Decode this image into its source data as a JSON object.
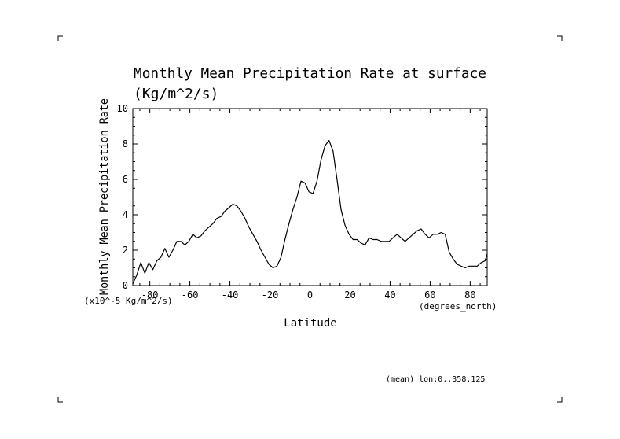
{
  "chart_data": {
    "type": "line",
    "title_line1": "Monthly Mean Precipitation Rate at surface",
    "title_line2": "(Kg/m^2/s)",
    "ylabel": "Monthly Mean Precipitation Rate",
    "xlabel": "Latitude",
    "x_units": "(degrees_north)",
    "y_units": "(x10^-5 Kg/m^2/s)",
    "footer": "(mean) lon:0..358.125",
    "xlim": [
      -88.5,
      88.5
    ],
    "ylim": [
      0,
      10
    ],
    "xticks": [
      -80,
      -60,
      -40,
      -20,
      0,
      20,
      40,
      60,
      80
    ],
    "xtick_labels": [
      "-80",
      "-60",
      "-40",
      "-20",
      "0",
      "20",
      "40",
      "60",
      "80"
    ],
    "yticks": [
      0,
      2,
      4,
      6,
      8,
      10
    ],
    "ytick_labels": [
      "0",
      "2",
      "4",
      "6",
      "8",
      "10"
    ],
    "grid": false,
    "series": [
      {
        "x": [
          -88.5,
          -86.5,
          -84.5,
          -82.5,
          -80.5,
          -78.5,
          -76.5,
          -74.5,
          -72.5,
          -70.5,
          -68.5,
          -66.5,
          -64.5,
          -62.5,
          -60.5,
          -58.5,
          -56.5,
          -54.5,
          -52.5,
          -50.5,
          -48.5,
          -46.5,
          -44.5,
          -42.5,
          -40.5,
          -38.5,
          -36.5,
          -34.5,
          -32.5,
          -30.5,
          -28.5,
          -26.5,
          -24.5,
          -22.5,
          -20.5,
          -18.5,
          -16.5,
          -14.5,
          -12.5,
          -10.5,
          -8.5,
          -6.5,
          -4.5,
          -2.5,
          -0.5,
          1.5,
          3.5,
          5.5,
          7.5,
          9.5,
          11.5,
          13.5,
          15.5,
          17.5,
          19.5,
          21.5,
          23.5,
          25.5,
          27.5,
          29.5,
          31.5,
          33.5,
          35.5,
          37.5,
          39.5,
          41.5,
          43.5,
          45.5,
          47.5,
          49.5,
          51.5,
          53.5,
          55.5,
          57.5,
          59.5,
          61.5,
          63.5,
          65.5,
          67.5,
          69.5,
          71.5,
          73.5,
          75.5,
          77.5,
          79.5,
          81.5,
          83.5,
          85.5,
          87.5,
          88.5
        ],
        "y": [
          0.1,
          0.6,
          1.3,
          0.7,
          1.3,
          0.9,
          1.4,
          1.6,
          2.1,
          1.6,
          2.0,
          2.5,
          2.5,
          2.3,
          2.5,
          2.9,
          2.7,
          2.8,
          3.1,
          3.3,
          3.5,
          3.8,
          3.9,
          4.2,
          4.4,
          4.6,
          4.5,
          4.2,
          3.8,
          3.3,
          2.9,
          2.5,
          2.0,
          1.6,
          1.2,
          1.0,
          1.1,
          1.6,
          2.6,
          3.5,
          4.3,
          5.0,
          5.9,
          5.8,
          5.3,
          5.2,
          5.9,
          7.1,
          7.9,
          8.2,
          7.6,
          6.0,
          4.3,
          3.4,
          2.9,
          2.6,
          2.6,
          2.4,
          2.3,
          2.7,
          2.6,
          2.6,
          2.5,
          2.5,
          2.5,
          2.7,
          2.9,
          2.7,
          2.5,
          2.7,
          2.9,
          3.1,
          3.2,
          2.9,
          2.7,
          2.9,
          2.9,
          3.0,
          2.9,
          1.9,
          1.5,
          1.2,
          1.1,
          1.0,
          1.1,
          1.1,
          1.1,
          1.3,
          1.4,
          1.8
        ],
        "color": "#000000"
      }
    ]
  }
}
